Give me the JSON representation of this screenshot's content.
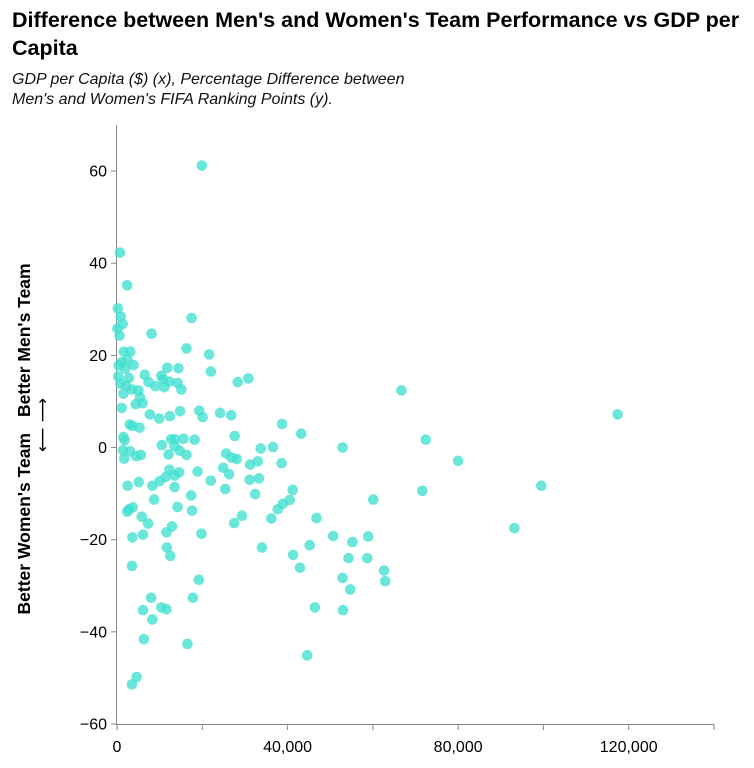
{
  "header": {
    "title": "Difference between Men's and Women's Team Performance vs GDP per Capita",
    "subtitle_line1": "GDP per Capita ($) (x), Percentage Difference between",
    "subtitle_line2": "Men's and Women's FIFA Ranking Points (y)."
  },
  "colors": {
    "point": "#40e0d0",
    "axis": "#888888"
  },
  "chart_data": {
    "type": "scatter",
    "title": "Difference between Men's and Women's Team Performance vs GDP per Capita",
    "subtitle": "GDP per Capita ($) (x), Percentage Difference between Men's and Women's FIFA Ranking Points (y).",
    "xlabel": "",
    "ylabel": "Better Women's Team Better Men's Team",
    "ylabel_parts": {
      "left": "Better Women's Team",
      "right": "Better Men's Team",
      "arrows": "⟵ ⟶"
    },
    "xlim": [
      0,
      140000
    ],
    "ylim": [
      -60,
      70
    ],
    "xticks": [
      0,
      40000,
      80000,
      120000
    ],
    "xtick_labels": [
      "0",
      "40,000",
      "80,000",
      "120,000"
    ],
    "yticks": [
      -60,
      -40,
      -20,
      0,
      20,
      40,
      60
    ],
    "ytick_labels": [
      "−60",
      "−40",
      "−20",
      "0",
      "20",
      "40",
      "60"
    ],
    "grid": false,
    "points": [
      {
        "x": 19900,
        "y": 61.2
      },
      {
        "x": 700,
        "y": 42.3
      },
      {
        "x": 2400,
        "y": 35.2
      },
      {
        "x": 200,
        "y": 30.2
      },
      {
        "x": 900,
        "y": 28.4
      },
      {
        "x": 1300,
        "y": 26.8
      },
      {
        "x": 100,
        "y": 25.8
      },
      {
        "x": 600,
        "y": 24.3
      },
      {
        "x": 8100,
        "y": 24.7
      },
      {
        "x": 17500,
        "y": 28.1
      },
      {
        "x": 1600,
        "y": 20.8
      },
      {
        "x": 3100,
        "y": 20.8
      },
      {
        "x": 2500,
        "y": 19.0
      },
      {
        "x": 1100,
        "y": 18.5
      },
      {
        "x": 400,
        "y": 17.8
      },
      {
        "x": 3900,
        "y": 17.9
      },
      {
        "x": 1900,
        "y": 17.1
      },
      {
        "x": 16300,
        "y": 21.5
      },
      {
        "x": 21600,
        "y": 20.2
      },
      {
        "x": 14400,
        "y": 17.2
      },
      {
        "x": 11800,
        "y": 17.3
      },
      {
        "x": 22000,
        "y": 16.5
      },
      {
        "x": 6500,
        "y": 15.8
      },
      {
        "x": 300,
        "y": 15.4
      },
      {
        "x": 2800,
        "y": 15.1
      },
      {
        "x": 10400,
        "y": 15.6
      },
      {
        "x": 10800,
        "y": 14.8
      },
      {
        "x": 12300,
        "y": 14.3
      },
      {
        "x": 7400,
        "y": 14.2
      },
      {
        "x": 14200,
        "y": 14.0
      },
      {
        "x": 9000,
        "y": 13.3
      },
      {
        "x": 11100,
        "y": 13.1
      },
      {
        "x": 800,
        "y": 13.9
      },
      {
        "x": 2100,
        "y": 13.4
      },
      {
        "x": 3500,
        "y": 12.6
      },
      {
        "x": 5000,
        "y": 12.4
      },
      {
        "x": 1500,
        "y": 11.7
      },
      {
        "x": 15100,
        "y": 12.6
      },
      {
        "x": 28300,
        "y": 14.2
      },
      {
        "x": 30800,
        "y": 15.0
      },
      {
        "x": 66700,
        "y": 12.4
      },
      {
        "x": 117400,
        "y": 7.2
      },
      {
        "x": 5400,
        "y": 10.9
      },
      {
        "x": 4400,
        "y": 9.4
      },
      {
        "x": 6000,
        "y": 9.6
      },
      {
        "x": 1100,
        "y": 8.6
      },
      {
        "x": 14800,
        "y": 7.9
      },
      {
        "x": 19300,
        "y": 8.0
      },
      {
        "x": 24200,
        "y": 7.5
      },
      {
        "x": 26800,
        "y": 7.0
      },
      {
        "x": 7700,
        "y": 7.2
      },
      {
        "x": 12400,
        "y": 6.8
      },
      {
        "x": 20100,
        "y": 6.6
      },
      {
        "x": 9900,
        "y": 6.3
      },
      {
        "x": 38700,
        "y": 5.1
      },
      {
        "x": 3000,
        "y": 5.0
      },
      {
        "x": 3600,
        "y": 4.7
      },
      {
        "x": 5300,
        "y": 4.3
      },
      {
        "x": 43200,
        "y": 3.0
      },
      {
        "x": 27600,
        "y": 2.5
      },
      {
        "x": 1500,
        "y": 2.3
      },
      {
        "x": 1800,
        "y": 1.6
      },
      {
        "x": 12700,
        "y": 1.8
      },
      {
        "x": 13600,
        "y": 1.8
      },
      {
        "x": 15600,
        "y": 1.9
      },
      {
        "x": 18200,
        "y": 1.7
      },
      {
        "x": 72400,
        "y": 1.7
      },
      {
        "x": 10500,
        "y": 0.5
      },
      {
        "x": 13500,
        "y": 0.3
      },
      {
        "x": 36600,
        "y": 0.1
      },
      {
        "x": 52900,
        "y": 0.0
      },
      {
        "x": 33700,
        "y": -0.2
      },
      {
        "x": 1400,
        "y": -0.6
      },
      {
        "x": 3100,
        "y": -0.8
      },
      {
        "x": 14700,
        "y": -0.7
      },
      {
        "x": 25600,
        "y": -1.3
      },
      {
        "x": 5600,
        "y": -1.6
      },
      {
        "x": 12100,
        "y": -1.5
      },
      {
        "x": 16300,
        "y": -1.6
      },
      {
        "x": 4500,
        "y": -1.9
      },
      {
        "x": 1700,
        "y": -2.4
      },
      {
        "x": 26900,
        "y": -2.2
      },
      {
        "x": 28100,
        "y": -2.5
      },
      {
        "x": 33000,
        "y": -3.0
      },
      {
        "x": 80000,
        "y": -2.9
      },
      {
        "x": 31200,
        "y": -3.7
      },
      {
        "x": 38600,
        "y": -3.4
      },
      {
        "x": 12300,
        "y": -4.8
      },
      {
        "x": 24900,
        "y": -4.4
      },
      {
        "x": 18900,
        "y": -5.2
      },
      {
        "x": 14600,
        "y": -5.4
      },
      {
        "x": 13500,
        "y": -6.1
      },
      {
        "x": 26300,
        "y": -5.8
      },
      {
        "x": 11400,
        "y": -6.4
      },
      {
        "x": 33300,
        "y": -6.7
      },
      {
        "x": 22000,
        "y": -7.2
      },
      {
        "x": 5100,
        "y": -7.5
      },
      {
        "x": 10000,
        "y": -7.3
      },
      {
        "x": 31100,
        "y": -7.0
      },
      {
        "x": 2500,
        "y": -8.3
      },
      {
        "x": 8300,
        "y": -8.3
      },
      {
        "x": 13500,
        "y": -8.6
      },
      {
        "x": 25400,
        "y": -9.0
      },
      {
        "x": 32400,
        "y": -10.1
      },
      {
        "x": 41200,
        "y": -9.2
      },
      {
        "x": 71600,
        "y": -9.4
      },
      {
        "x": 99500,
        "y": -8.3
      },
      {
        "x": 17400,
        "y": -10.4
      },
      {
        "x": 8700,
        "y": -11.3
      },
      {
        "x": 40500,
        "y": -11.4
      },
      {
        "x": 38900,
        "y": -12.2
      },
      {
        "x": 60100,
        "y": -11.3
      },
      {
        "x": 14200,
        "y": -12.9
      },
      {
        "x": 37700,
        "y": -13.4
      },
      {
        "x": 17600,
        "y": -13.7
      },
      {
        "x": 2400,
        "y": -13.9
      },
      {
        "x": 2800,
        "y": -13.4
      },
      {
        "x": 3700,
        "y": -13.0
      },
      {
        "x": 29300,
        "y": -14.8
      },
      {
        "x": 5800,
        "y": -15.0
      },
      {
        "x": 36200,
        "y": -15.4
      },
      {
        "x": 46800,
        "y": -15.3
      },
      {
        "x": 7300,
        "y": -16.5
      },
      {
        "x": 12900,
        "y": -17.1
      },
      {
        "x": 27500,
        "y": -16.4
      },
      {
        "x": 93200,
        "y": -17.5
      },
      {
        "x": 19800,
        "y": -18.7
      },
      {
        "x": 6100,
        "y": -18.9
      },
      {
        "x": 11600,
        "y": -18.4
      },
      {
        "x": 3600,
        "y": -19.5
      },
      {
        "x": 50700,
        "y": -19.2
      },
      {
        "x": 58900,
        "y": -19.3
      },
      {
        "x": 55200,
        "y": -20.5
      },
      {
        "x": 45200,
        "y": -21.2
      },
      {
        "x": 34000,
        "y": -21.7
      },
      {
        "x": 11700,
        "y": -21.7
      },
      {
        "x": 12500,
        "y": -23.5
      },
      {
        "x": 41300,
        "y": -23.3
      },
      {
        "x": 54300,
        "y": -24.0
      },
      {
        "x": 58700,
        "y": -24.0
      },
      {
        "x": 3500,
        "y": -25.7
      },
      {
        "x": 42900,
        "y": -26.1
      },
      {
        "x": 62600,
        "y": -26.7
      },
      {
        "x": 52900,
        "y": -28.3
      },
      {
        "x": 62900,
        "y": -29.0
      },
      {
        "x": 19200,
        "y": -28.7
      },
      {
        "x": 54700,
        "y": -30.8
      },
      {
        "x": 17800,
        "y": -32.6
      },
      {
        "x": 8000,
        "y": -32.6
      },
      {
        "x": 10400,
        "y": -34.7
      },
      {
        "x": 11600,
        "y": -35.1
      },
      {
        "x": 6100,
        "y": -35.3
      },
      {
        "x": 46400,
        "y": -34.7
      },
      {
        "x": 53000,
        "y": -35.3
      },
      {
        "x": 8300,
        "y": -37.3
      },
      {
        "x": 6300,
        "y": -41.6
      },
      {
        "x": 16500,
        "y": -42.6
      },
      {
        "x": 44600,
        "y": -45.1
      },
      {
        "x": 4600,
        "y": -49.8
      },
      {
        "x": 3500,
        "y": -51.4
      }
    ]
  }
}
